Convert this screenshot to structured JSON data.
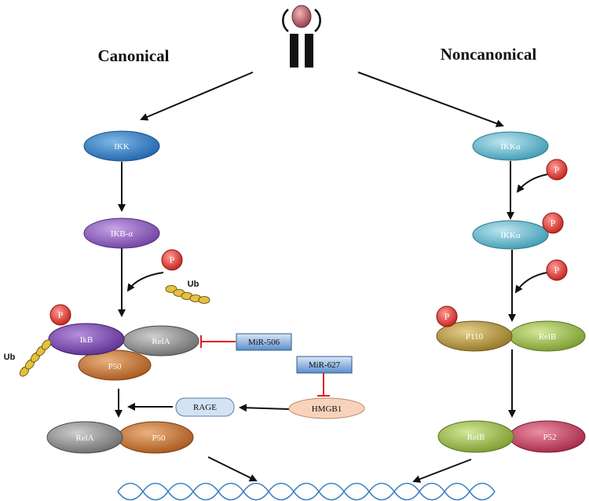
{
  "titles": {
    "left": "Canonical",
    "right": "Noncanonical"
  },
  "nodes": {
    "ikk": "IKK",
    "ikb_alpha": "IKB-α",
    "ikb": "IkB",
    "rela_complex": "RelA",
    "p50_complex": "P50",
    "mir506": "MiR-506",
    "mir627": "MiR-627",
    "hmgb1": "HMGB1",
    "rage": "RAGE",
    "rela_final": "RelA",
    "p50_final": "P50",
    "ikka_top": "IKKα",
    "ikka_mid": "IKKα",
    "p110": "P110",
    "relb_complex": "RelB",
    "relb_final": "RelB",
    "p52": "P52"
  },
  "labels": {
    "phospho": "P",
    "ubiquitin": "Ub"
  },
  "colors": {
    "ikk": "#2f7fc8",
    "ikb_alpha": "#8e5bc0",
    "ikb": "#7a4bb0",
    "rela": "#8c8c8c",
    "p50": "#c9702c",
    "ikka": "#5fb8cc",
    "p110": "#b79a3e",
    "relb": "#9bb84a",
    "p52": "#c44060",
    "phospho": "#d9302c",
    "ubiquitin": "#e0c040",
    "box_blue": "#4f86c6",
    "hmgb1": "#f7d4bd",
    "rage": "#cfe0f2"
  }
}
